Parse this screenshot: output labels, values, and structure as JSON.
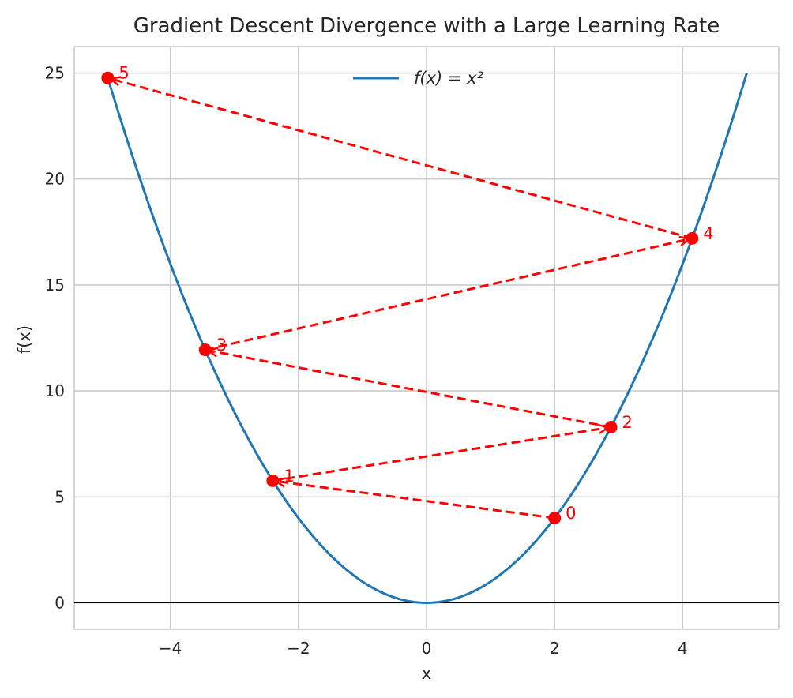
{
  "chart_data": {
    "type": "line",
    "title": "Gradient Descent Divergence with a Large Learning Rate",
    "xlabel": "x",
    "ylabel": "f(x)",
    "xlim": [
      -5.5,
      5.5
    ],
    "ylim": [
      -1.25,
      26.25
    ],
    "xticks": [
      -4,
      -2,
      0,
      2,
      4
    ],
    "xtick_labels": [
      "−4",
      "−2",
      "0",
      "2",
      "4"
    ],
    "yticks": [
      0,
      5,
      10,
      15,
      20,
      25
    ],
    "ytick_labels": [
      "0",
      "5",
      "10",
      "15",
      "20",
      "25"
    ],
    "grid": true,
    "legend": {
      "placement": "upper center",
      "entries": [
        "f(x) = x²"
      ]
    },
    "series": [
      {
        "name": "f(x) = x²",
        "kind": "curve",
        "function": "x^2",
        "x_range": [
          -5,
          5
        ],
        "color": "#1f77b4"
      },
      {
        "kind": "dashed-path-with-markers",
        "color": "#ff0000",
        "points": [
          {
            "label": "0",
            "x": 2.0,
            "y": 4.0
          },
          {
            "label": "1",
            "x": -2.4,
            "y": 5.76
          },
          {
            "label": "2",
            "x": 2.88,
            "y": 8.29
          },
          {
            "label": "3",
            "x": -3.456,
            "y": 11.94
          },
          {
            "label": "4",
            "x": 4.147,
            "y": 17.2
          },
          {
            "label": "5",
            "x": -4.977,
            "y": 24.77
          }
        ]
      }
    ],
    "reference_lines": [
      {
        "axis": "y",
        "value": 0,
        "color": "#000000"
      }
    ],
    "colors": {
      "curve": "#1f77b4",
      "path": "#ff0000",
      "grid": "#cccccc",
      "spine": "#cccccc",
      "text": "#262626"
    }
  }
}
